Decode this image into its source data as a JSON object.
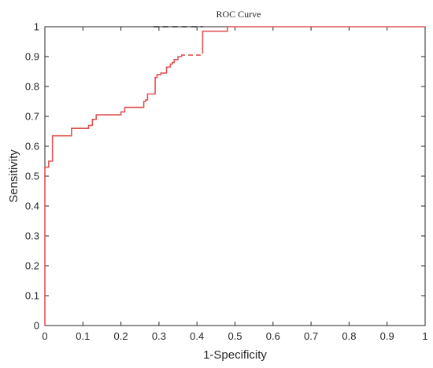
{
  "chart_data": {
    "type": "line",
    "title": "ROC Curve",
    "xlabel": "1-Specificity",
    "ylabel": "Sensitivity",
    "xlim": [
      0,
      1
    ],
    "ylim": [
      0,
      1
    ],
    "xticks": [
      "0",
      "0.1",
      "0.2",
      "0.3",
      "0.4",
      "0.5",
      "0.6",
      "0.7",
      "0.8",
      "0.9",
      "1"
    ],
    "yticks": [
      "0",
      "0.1",
      "0.2",
      "0.3",
      "0.4",
      "0.5",
      "0.6",
      "0.7",
      "0.8",
      "0.9",
      "1"
    ],
    "grid": false,
    "colors": {
      "curve": "#e05555",
      "dashed": "#222222",
      "axis": "#262626"
    },
    "series": [
      {
        "values": [
          [
            0,
            0
          ],
          [
            0,
            0.53
          ],
          [
            0.01,
            0.53
          ],
          [
            0.01,
            0.55
          ],
          [
            0.02,
            0.55
          ],
          [
            0.02,
            0.635
          ],
          [
            0.07,
            0.635
          ],
          [
            0.07,
            0.66
          ],
          [
            0.115,
            0.66
          ],
          [
            0.115,
            0.67
          ],
          [
            0.125,
            0.67
          ],
          [
            0.125,
            0.69
          ],
          [
            0.135,
            0.69
          ],
          [
            0.135,
            0.705
          ],
          [
            0.2,
            0.705
          ],
          [
            0.2,
            0.715
          ],
          [
            0.21,
            0.715
          ],
          [
            0.21,
            0.73
          ],
          [
            0.26,
            0.73
          ],
          [
            0.26,
            0.75
          ],
          [
            0.265,
            0.75
          ],
          [
            0.265,
            0.755
          ],
          [
            0.27,
            0.755
          ],
          [
            0.27,
            0.775
          ],
          [
            0.29,
            0.775
          ],
          [
            0.29,
            0.83
          ],
          [
            0.295,
            0.83
          ],
          [
            0.295,
            0.84
          ],
          [
            0.305,
            0.84
          ],
          [
            0.305,
            0.845
          ],
          [
            0.32,
            0.845
          ],
          [
            0.32,
            0.865
          ],
          [
            0.33,
            0.865
          ],
          [
            0.33,
            0.875
          ],
          [
            0.335,
            0.875
          ],
          [
            0.335,
            0.88
          ],
          [
            0.34,
            0.88
          ],
          [
            0.34,
            0.89
          ],
          [
            0.35,
            0.89
          ],
          [
            0.35,
            0.9
          ],
          [
            0.36,
            0.9
          ]
        ]
      },
      {
        "values": [
          [
            0.36,
            0.9
          ],
          [
            0.36,
            0.905
          ],
          [
            0.415,
            0.905
          ],
          [
            0.415,
            0.918
          ]
        ]
      },
      {
        "values": [
          [
            0.415,
            0.918
          ],
          [
            0.415,
            0.985
          ],
          [
            0.48,
            0.985
          ],
          [
            0.48,
            1
          ],
          [
            1,
            1
          ]
        ]
      },
      {
        "values": [
          [
            0.285,
            1
          ],
          [
            0.415,
            1
          ]
        ]
      }
    ]
  }
}
